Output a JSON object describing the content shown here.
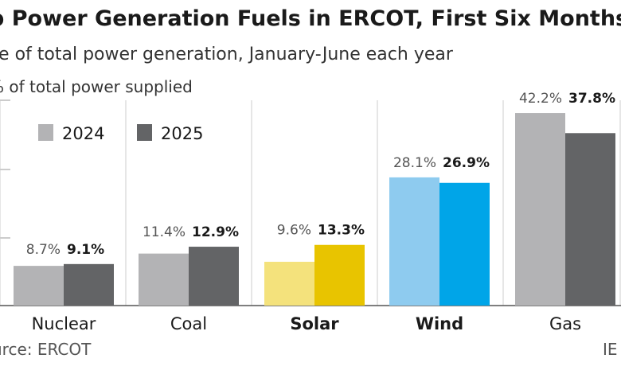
{
  "chart_data": {
    "type": "bar",
    "title": "p Power Generation Fuels in ERCOT, First Six Months",
    "subtitle": "are of total power generation, January-June each year",
    "ylabel": "% of total power supplied",
    "source": "urce: ERCOT",
    "credit": "IE",
    "categories": [
      "Nuclear",
      "Coal",
      "Solar",
      "Wind",
      "Gas"
    ],
    "highlighted_categories": [
      "Solar",
      "Wind"
    ],
    "series": [
      {
        "name": "2024",
        "values": [
          8.7,
          11.4,
          9.6,
          28.1,
          42.2
        ],
        "labels": [
          "8.7%",
          "11.4%",
          "9.6%",
          "28.1%",
          "42.2%"
        ]
      },
      {
        "name": "2025",
        "values": [
          9.1,
          12.9,
          13.3,
          26.9,
          37.8
        ],
        "labels": [
          "9.1%",
          "12.9%",
          "13.3%",
          "26.9%",
          "37.8%"
        ]
      }
    ],
    "ylim": [
      0,
      45
    ],
    "grid": false,
    "legend_position": "top-left",
    "colors": {
      "2024": "#b3b3b5",
      "2025": "#636466",
      "solar_2024": "#f4e27c",
      "solar_2025": "#e8c400",
      "wind_2024": "#8ecbef",
      "wind_2025": "#00a5e8"
    }
  }
}
